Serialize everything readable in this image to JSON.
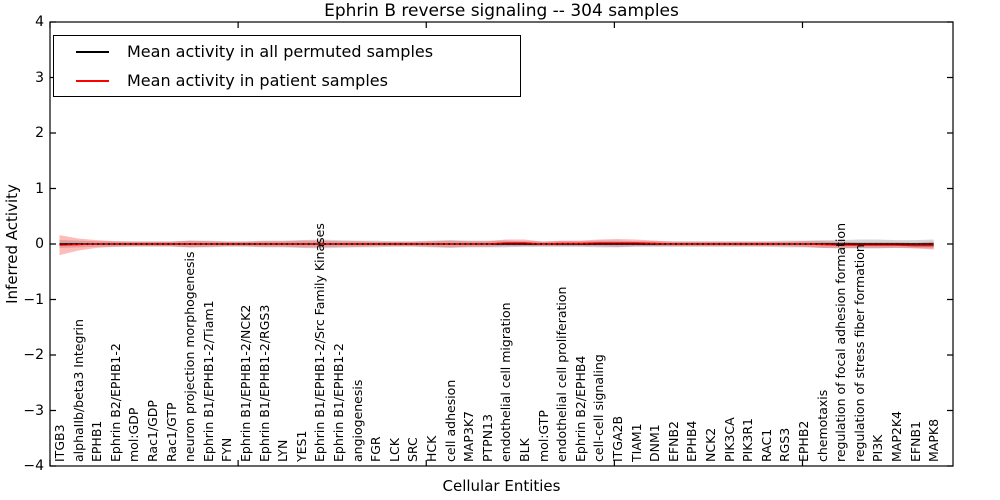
{
  "figure": {
    "title": "Ephrin B reverse signaling -- 304 samples",
    "x_axis_label": "Cellular Entities",
    "y_axis_label": "Inferred Activity"
  },
  "legend": {
    "items": [
      {
        "label": "Mean activity in all permuted samples",
        "color": "#000000"
      },
      {
        "label": "Mean activity in patient samples",
        "color": "#ff0000"
      }
    ]
  },
  "chart_data": {
    "type": "line",
    "title": "Ephrin B reverse signaling -- 304 samples",
    "xlabel": "Cellular Entities",
    "ylabel": "Inferred Activity",
    "ylim": [
      -4,
      4
    ],
    "grid": false,
    "legend_position": "upper left",
    "y_axis": {
      "tick_values": [
        4,
        3,
        2,
        1,
        0,
        -1,
        -2,
        -3,
        -4
      ],
      "tick_labels": [
        "4",
        "3",
        "2",
        "1",
        "0",
        "−1",
        "−2",
        "−3",
        "−4"
      ]
    },
    "x_axis": {
      "range": [
        0,
        48
      ],
      "tick_values": [
        0,
        10,
        20,
        30,
        40
      ],
      "tick_labels_shown": false
    },
    "categories": [
      "ITGB3",
      "alphaIIb/beta3 Integrin",
      "EPHB1",
      "Ephrin B2/EPHB1-2",
      "mol:GDP",
      "Rac1/GDP",
      "Rac1/GTP",
      "neuron projection morphogenesis",
      "Ephrin B1/EPHB1-2/Tiam1",
      "FYN",
      "Ephrin B1/EPHB1-2/NCK2",
      "Ephrin B1/EPHB1-2/RGS3",
      "LYN",
      "YES1",
      "Ephrin B1/EPHB1-2/Src Family Kinases",
      "Ephrin B1/EPHB1-2",
      "angiogenesis",
      "FGR",
      "LCK",
      "SRC",
      "HCK",
      "cell adhesion",
      "MAP3K7",
      "PTPN13",
      "endothelial cell migration",
      "BLK",
      "mol:GTP",
      "endothelial cell proliferation",
      "Ephrin B2/EPHB4",
      "cell-cell signaling",
      "ITGA2B",
      "TIAM1",
      "DNM1",
      "EFNB2",
      "EPHB4",
      "NCK2",
      "PIK3CA",
      "PIK3R1",
      "RAC1",
      "RGS3",
      "EPHB2",
      "chemotaxis",
      "regulation of focal adhesion formation",
      "regulation of stress fiber formation",
      "PI3K",
      "MAP2K4",
      "EFNB1",
      "MAPK8"
    ],
    "series": [
      {
        "name": "Mean activity in all permuted samples",
        "color": "#000000",
        "band_color": "rgba(0,0,0,0.16)",
        "values": [
          0,
          0,
          0,
          0,
          0,
          0,
          0,
          0,
          0,
          0,
          0,
          0,
          0,
          0,
          0,
          0,
          0,
          0,
          0,
          0,
          0,
          0,
          0,
          0,
          0,
          0,
          0,
          0,
          0,
          0,
          0,
          0,
          0,
          0,
          0,
          0,
          0,
          0,
          0,
          0,
          0,
          0,
          0,
          0,
          0,
          0,
          0,
          0
        ],
        "band": [
          0.07,
          0.06,
          0.05,
          0.05,
          0.05,
          0.05,
          0.05,
          0.06,
          0.06,
          0.05,
          0.05,
          0.06,
          0.06,
          0.07,
          0.08,
          0.07,
          0.06,
          0.06,
          0.05,
          0.05,
          0.06,
          0.07,
          0.06,
          0.06,
          0.06,
          0.05,
          0.05,
          0.05,
          0.05,
          0.06,
          0.06,
          0.05,
          0.05,
          0.05,
          0.05,
          0.05,
          0.05,
          0.05,
          0.05,
          0.06,
          0.06,
          0.07,
          0.07,
          0.08,
          0.08,
          0.07,
          0.07,
          0.08
        ]
      },
      {
        "name": "Mean activity in patient samples",
        "color": "#ff0000",
        "band_color": "rgba(255,0,0,0.27)",
        "values": [
          -0.02,
          -0.01,
          0,
          0,
          0,
          0,
          0,
          0,
          0,
          0,
          0,
          0,
          0,
          0,
          0,
          0,
          0,
          0,
          0,
          0,
          0,
          0,
          0,
          0,
          0.02,
          0.02,
          0,
          0.01,
          0.01,
          0.02,
          0.02,
          0.02,
          0.01,
          0,
          0,
          0,
          0,
          0,
          0,
          0,
          0,
          -0.01,
          -0.02,
          -0.02,
          -0.02,
          -0.02,
          -0.03,
          -0.03
        ],
        "band": [
          0.18,
          0.11,
          0.07,
          0.05,
          0.04,
          0.04,
          0.04,
          0.06,
          0.05,
          0.04,
          0.04,
          0.05,
          0.05,
          0.06,
          0.06,
          0.05,
          0.05,
          0.04,
          0.04,
          0.04,
          0.05,
          0.06,
          0.05,
          0.05,
          0.06,
          0.06,
          0.04,
          0.05,
          0.05,
          0.06,
          0.07,
          0.06,
          0.05,
          0.04,
          0.04,
          0.04,
          0.04,
          0.04,
          0.04,
          0.04,
          0.05,
          0.06,
          0.06,
          0.05,
          0.05,
          0.05,
          0.05,
          0.07
        ]
      }
    ]
  }
}
